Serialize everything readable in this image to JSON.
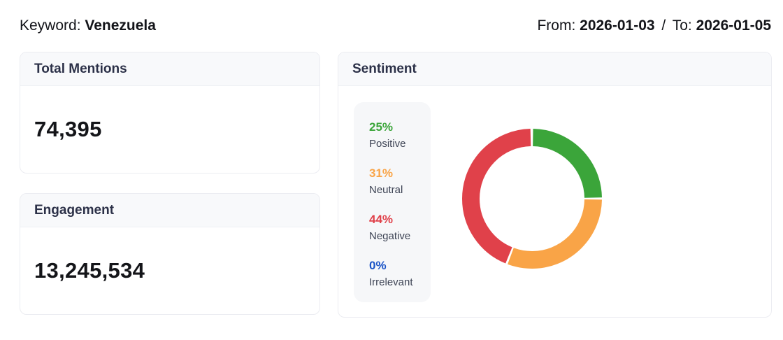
{
  "header": {
    "keyword_label": "Keyword:",
    "keyword_value": "Venezuela",
    "from_label": "From:",
    "from_value": "2026-01-03",
    "range_separator": "/",
    "to_label": "To:",
    "to_value": "2026-01-05"
  },
  "cards": {
    "total_mentions": {
      "title": "Total Mentions",
      "value": "74,395"
    },
    "engagement": {
      "title": "Engagement",
      "value": "13,245,534"
    },
    "sentiment": {
      "title": "Sentiment"
    }
  },
  "chart_data": {
    "type": "pie",
    "donut": true,
    "title": "Sentiment",
    "categories": [
      "Positive",
      "Neutral",
      "Negative",
      "Irrelevant"
    ],
    "values": [
      25,
      31,
      44,
      0
    ],
    "unit": "%",
    "slices": [
      {
        "label": "Positive",
        "value": 25,
        "display": "25%",
        "color": "#3ba53a"
      },
      {
        "label": "Neutral",
        "value": 31,
        "display": "31%",
        "color": "#f9a447"
      },
      {
        "label": "Negative",
        "value": 44,
        "display": "44%",
        "color": "#e0414a"
      },
      {
        "label": "Irrelevant",
        "value": 0,
        "display": "0%",
        "color": "#1b54c7"
      }
    ],
    "legend_position": "left",
    "start_angle_deg": 0,
    "direction": "clockwise",
    "segment_gap_deg": 1.8,
    "ring_thickness_ratio": 0.25
  }
}
